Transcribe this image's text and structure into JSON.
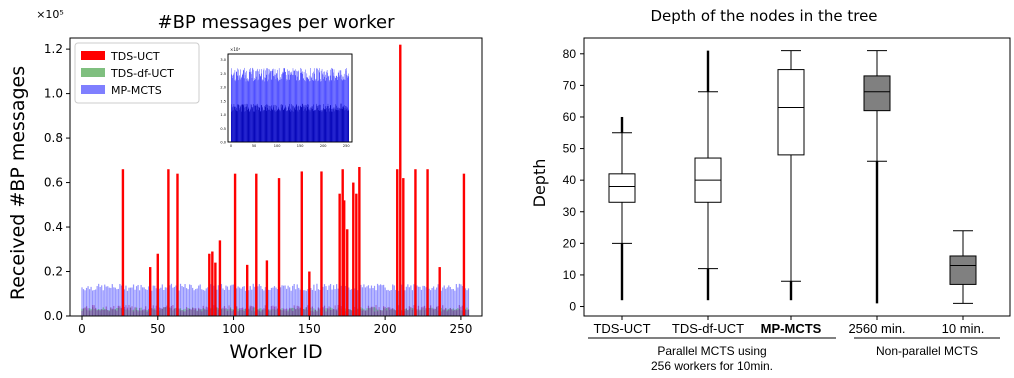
{
  "charts": [
    {
      "type": "bar",
      "title": "#BP messages per worker",
      "xlabel": "Worker ID",
      "ylabel": "Received #BP messages",
      "y_multiplier": "×10⁵",
      "xlim": [
        0,
        256
      ],
      "ylim": [
        0,
        1.25
      ],
      "xticks": [
        "0",
        "50",
        "100",
        "150",
        "200",
        "250"
      ],
      "yticks": [
        "0.0",
        "0.2",
        "0.4",
        "0.6",
        "0.8",
        "1.0",
        "1.2"
      ],
      "legend": {
        "placement": "top-left",
        "items": [
          {
            "label": "TDS-UCT",
            "color": "#ff0000"
          },
          {
            "label": "TDS-df-UCT",
            "color": "#7fbf7f"
          },
          {
            "label": "MP-MCTS",
            "color": "#7f7fff"
          }
        ]
      },
      "series_colors": {
        "TDS-UCT": "#ff0000",
        "TDS-df-UCT": "#2ca02c",
        "MP-MCTS": "#3f3fff"
      },
      "baseline_levels": {
        "TDS-UCT": 0.05,
        "TDS-df-UCT": 0.04,
        "MP-MCTS": 0.145
      },
      "tds_uct_spikes": [
        {
          "x": 27,
          "y": 0.66
        },
        {
          "x": 45,
          "y": 0.22
        },
        {
          "x": 50,
          "y": 0.28
        },
        {
          "x": 57,
          "y": 0.66
        },
        {
          "x": 63,
          "y": 0.64
        },
        {
          "x": 84,
          "y": 0.28
        },
        {
          "x": 86,
          "y": 0.29
        },
        {
          "x": 88,
          "y": 0.24
        },
        {
          "x": 91,
          "y": 0.34
        },
        {
          "x": 101,
          "y": 0.64
        },
        {
          "x": 109,
          "y": 0.23
        },
        {
          "x": 115,
          "y": 0.64
        },
        {
          "x": 122,
          "y": 0.25
        },
        {
          "x": 130,
          "y": 0.62
        },
        {
          "x": 145,
          "y": 0.65
        },
        {
          "x": 150,
          "y": 0.2
        },
        {
          "x": 158,
          "y": 0.65
        },
        {
          "x": 170,
          "y": 0.55
        },
        {
          "x": 172,
          "y": 0.66
        },
        {
          "x": 173,
          "y": 0.52
        },
        {
          "x": 175,
          "y": 0.39
        },
        {
          "x": 179,
          "y": 0.6
        },
        {
          "x": 181,
          "y": 0.55
        },
        {
          "x": 183,
          "y": 0.67
        },
        {
          "x": 208,
          "y": 0.66
        },
        {
          "x": 210,
          "y": 1.22
        },
        {
          "x": 212,
          "y": 0.62
        },
        {
          "x": 220,
          "y": 0.66
        },
        {
          "x": 228,
          "y": 0.66
        },
        {
          "x": 236,
          "y": 0.22
        },
        {
          "x": 252,
          "y": 0.64
        }
      ],
      "inset": {
        "multiplier": "×10³",
        "xticks": [
          "0",
          "50",
          "100",
          "150",
          "200",
          "250"
        ],
        "yticks": [
          "0.0",
          "0.5",
          "1.0",
          "1.5",
          "2.0",
          "2.5",
          "3.0"
        ]
      }
    },
    {
      "type": "boxplot",
      "title": "Depth of the nodes in the tree",
      "ylabel": "Depth",
      "ylim": [
        -3,
        85
      ],
      "yticks": [
        "0",
        "10",
        "20",
        "30",
        "40",
        "50",
        "60",
        "70",
        "80"
      ],
      "boxes": [
        {
          "label": "TDS-UCT",
          "q1": 33,
          "median": 38,
          "q3": 42,
          "whisker_low": 20,
          "whisker_high": 55,
          "flier_low": 2,
          "flier_high": 60,
          "fill": "#ffffff",
          "bold": false
        },
        {
          "label": "TDS-df-UCT",
          "q1": 33,
          "median": 40,
          "q3": 47,
          "whisker_low": 12,
          "whisker_high": 68,
          "flier_low": 2,
          "flier_high": 81,
          "fill": "#ffffff",
          "bold": false
        },
        {
          "label": "MP-MCTS",
          "q1": 48,
          "median": 63,
          "q3": 75,
          "whisker_low": 8,
          "whisker_high": 81,
          "flier_low": 2,
          "flier_high": 8,
          "fill": "#ffffff",
          "bold": true
        },
        {
          "label": "2560 min.",
          "q1": 62,
          "median": 68,
          "q3": 73,
          "whisker_low": 46,
          "whisker_high": 81,
          "flier_low": 1,
          "flier_high": 46,
          "fill": "#808080",
          "bold": false
        },
        {
          "label": "10 min.",
          "q1": 7,
          "median": 13,
          "q3": 16,
          "whisker_low": 1,
          "whisker_high": 24,
          "flier_low": null,
          "flier_high": null,
          "fill": "#808080",
          "bold": false
        }
      ],
      "groups": [
        {
          "label_lines": [
            "Parallel MCTS using",
            "256 workers for 10min."
          ],
          "boxes": [
            0,
            1,
            2
          ]
        },
        {
          "label_lines": [
            "Non-parallel MCTS"
          ],
          "boxes": [
            3,
            4
          ]
        }
      ]
    }
  ]
}
